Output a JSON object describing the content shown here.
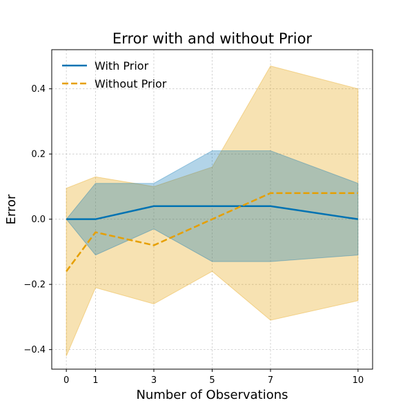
{
  "chart_data": {
    "type": "line",
    "title": "Error with and without Prior",
    "xlabel": "Number of Observations",
    "ylabel": "Error",
    "xlim": [
      -0.5,
      10.5
    ],
    "ylim": [
      -0.46,
      0.52
    ],
    "xticks": [
      0,
      1,
      3,
      5,
      7,
      10
    ],
    "yticks": [
      -0.4,
      -0.2,
      0.0,
      0.2,
      0.4
    ],
    "ytick_labels": [
      "−0.4",
      "−0.2",
      "0.0",
      "0.2",
      "0.4"
    ],
    "grid": true,
    "legend_position": "top-left",
    "x": [
      0,
      1,
      3,
      5,
      7,
      10
    ],
    "series": [
      {
        "name": "With Prior",
        "color": "#0072B2",
        "style": "solid",
        "band_opacity": 0.3,
        "values": [
          0.0,
          0.0,
          0.04,
          0.04,
          0.04,
          0.0
        ],
        "upper": [
          0.0,
          0.11,
          0.11,
          0.21,
          0.21,
          0.11
        ],
        "lower": [
          0.0,
          -0.11,
          -0.03,
          -0.13,
          -0.13,
          -0.11
        ]
      },
      {
        "name": "Without Prior",
        "color": "#E69F00",
        "style": "dashed",
        "band_opacity": 0.3,
        "values": [
          -0.16,
          -0.04,
          -0.08,
          0.0,
          0.08,
          0.08
        ],
        "upper": [
          0.095,
          0.13,
          0.1,
          0.16,
          0.47,
          0.4
        ],
        "lower": [
          -0.42,
          -0.21,
          -0.26,
          -0.16,
          -0.31,
          -0.25
        ]
      }
    ]
  }
}
